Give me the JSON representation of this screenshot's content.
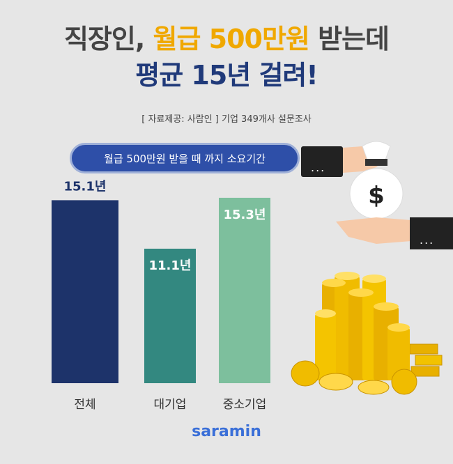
{
  "title": {
    "line1_pre": "직장인, ",
    "line1_accent": "월급 500만원",
    "line1_post": " 받는데",
    "line2": "평균 15년 걸려!"
  },
  "source": "[ 자료제공: 사람인 ] 기업 349개사 설문조사",
  "pill_label": "월급 500만원 받을 때 까지 소요기간",
  "sleeve_dots": "...",
  "money_bag_symbol": "$",
  "logo": "saramin",
  "colors": {
    "title_dark": "#444444",
    "title_accent": "#f0a800",
    "title_blue": "#203a7a",
    "pill": "#2e4fa8",
    "bar_total": "#1d336a",
    "bar_large": "#338880",
    "bar_sme": "#7dbf9d",
    "logo": "#3a6fd8"
  },
  "chart_data": {
    "type": "bar",
    "title": "월급 500만원 받을 때 까지 소요기간",
    "categories": [
      "전체",
      "대기업",
      "중소기업"
    ],
    "values": [
      15.1,
      11.1,
      15.3
    ],
    "value_labels": [
      "15.1년",
      "11.1년",
      "15.3년"
    ],
    "unit": "년",
    "xlabel": "",
    "ylabel": "",
    "grid": false,
    "legend": "none",
    "colors": [
      "#1d336a",
      "#338880",
      "#7dbf9d"
    ]
  }
}
